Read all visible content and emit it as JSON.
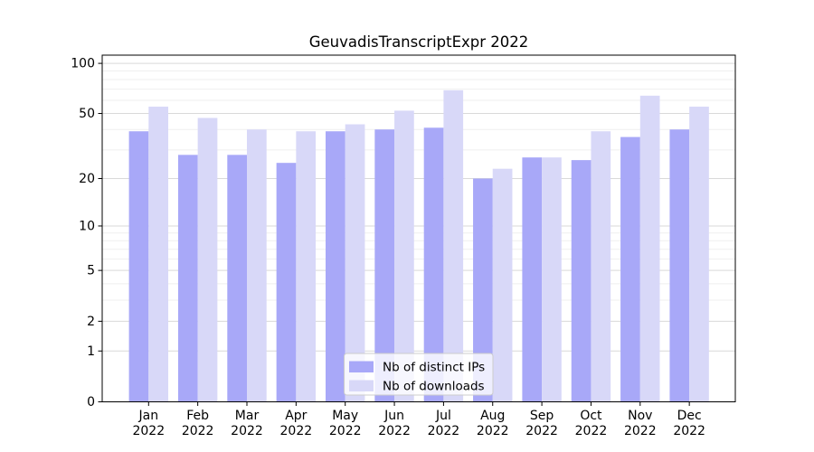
{
  "chart_data": {
    "type": "bar",
    "title": "GeuvadisTranscriptExpr 2022",
    "categories": [
      "Jan 2022",
      "Feb 2022",
      "Mar 2022",
      "Apr 2022",
      "May 2022",
      "Jun 2022",
      "Jul 2022",
      "Aug 2022",
      "Sep 2022",
      "Oct 2022",
      "Nov 2022",
      "Dec 2022"
    ],
    "x_tick_months": [
      "Jan",
      "Feb",
      "Mar",
      "Apr",
      "May",
      "Jun",
      "Jul",
      "Aug",
      "Sep",
      "Oct",
      "Nov",
      "Dec"
    ],
    "x_tick_year": "2022",
    "series": [
      {
        "name": "Nb of distinct IPs",
        "color": "#a8a8f8",
        "values": [
          39,
          28,
          28,
          25,
          39,
          40,
          41,
          20,
          27,
          26,
          36,
          40
        ]
      },
      {
        "name": "Nb of downloads",
        "color": "#d8d8f8",
        "values": [
          55,
          47,
          40,
          39,
          43,
          52,
          69,
          23,
          27,
          39,
          64,
          55
        ]
      }
    ],
    "xlabel": "",
    "ylabel": "",
    "yscale": "log1p",
    "ylim": [
      0,
      112
    ],
    "yticks": [
      100,
      50,
      20,
      10,
      5,
      2,
      1,
      0
    ],
    "yticks_minor": [
      3,
      4,
      6,
      7,
      8,
      9,
      30,
      40,
      60,
      70,
      80,
      90
    ],
    "grid": true,
    "legend_position": "lower center"
  },
  "style": {
    "grid_major_color": "#d9d9d9",
    "grid_minor_color": "#efefef",
    "axis_color": "#000000",
    "legend_border_color": "#cccccc",
    "legend_background": "#ffffff"
  }
}
